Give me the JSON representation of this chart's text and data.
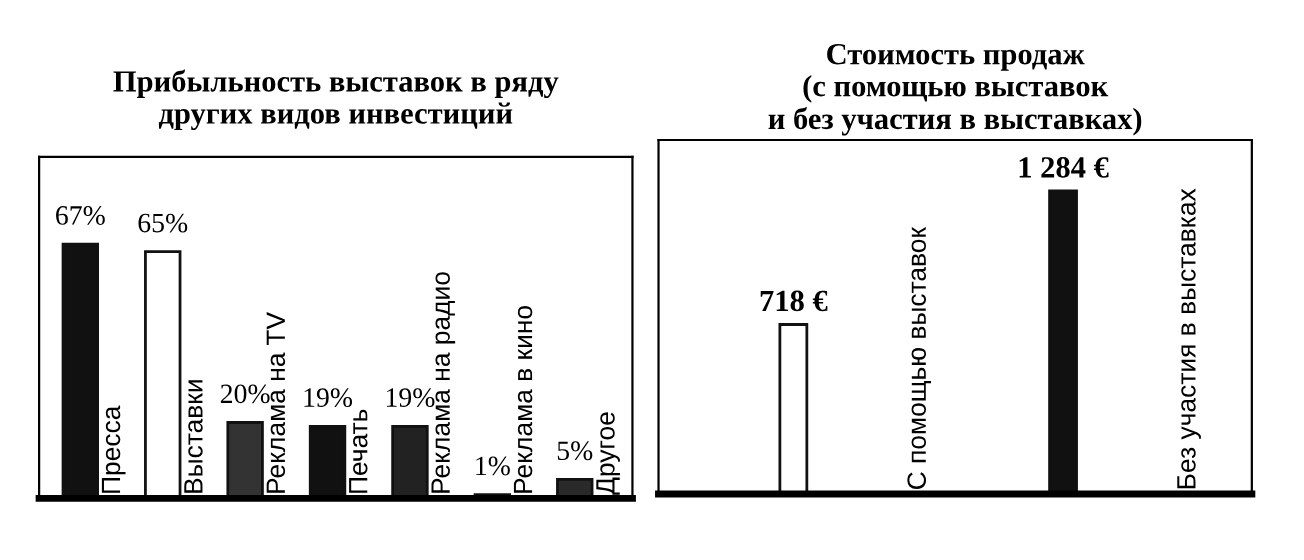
{
  "chart_data": [
    {
      "type": "bar",
      "title": "Прибыльность выставок в ряду\nдругих видов инвестиций",
      "categories": [
        "Пресса",
        "Выставки",
        "Реклама на TV",
        "Печать",
        "Реклама на радио",
        "Реклама в кино",
        "Другое"
      ],
      "values": [
        67,
        65,
        20,
        19,
        19,
        1,
        5
      ],
      "value_labels": [
        "67%",
        "65%",
        "20%",
        "19%",
        "19%",
        "1%",
        "5%"
      ],
      "colors": [
        "#111111",
        "#ffffff",
        "#333333",
        "#111111",
        "#222222",
        "#111111",
        "#2a2a2a"
      ],
      "ylim": [
        0,
        90
      ],
      "legend": false
    },
    {
      "type": "bar",
      "title": "Стоимость продаж\n(с помощью выставок\nи без участия в выставках)",
      "categories": [
        "С помощью выставок",
        "Без участия в выставках"
      ],
      "values": [
        718,
        1284
      ],
      "value_labels": [
        "718 €",
        "1 284 €"
      ],
      "colors": [
        "#ffffff",
        "#111111"
      ],
      "ylim": [
        0,
        1500
      ],
      "legend": false
    }
  ]
}
